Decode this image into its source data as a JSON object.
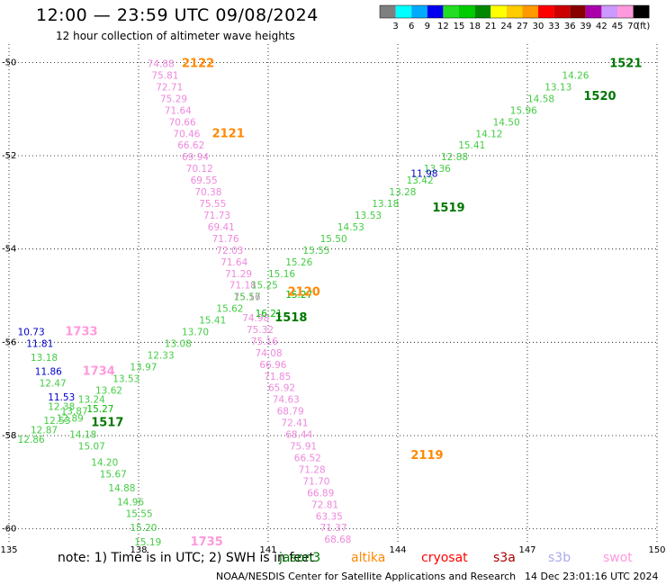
{
  "header": {
    "title": "12:00 — 23:59 UTC 09/08/2024",
    "subtitle": "12 hour collection of altimeter wave heights"
  },
  "colorbar": {
    "labels": [
      "3",
      "6",
      "9",
      "12",
      "15",
      "18",
      "21",
      "24",
      "27",
      "30",
      "33",
      "36",
      "39",
      "42",
      "45",
      "70"
    ],
    "unit": "(ft)",
    "colors": [
      "#7f7f7f",
      "#00ffff",
      "#00aaff",
      "#0000ee",
      "#22dd22",
      "#00cc00",
      "#008800",
      "#ffff00",
      "#ffcc00",
      "#ff9900",
      "#ff0000",
      "#cc0000",
      "#880000",
      "#aa00aa",
      "#cc99ff",
      "#ff99dd",
      "#000000"
    ]
  },
  "footer": {
    "note": "note:  1) Time is in UTC;  2) SWH is in feet",
    "credit": "NOAA/NESDIS Center for Satellite Applications and Research",
    "date": "14 Dec 23:01:16 UTC 2024",
    "satellites": [
      {
        "name": "jason3",
        "color": "#007700"
      },
      {
        "name": "altika",
        "color": "#ff8800"
      },
      {
        "name": "cryosat",
        "color": "#ff0000"
      },
      {
        "name": "s3a",
        "color": "#aa0000"
      },
      {
        "name": "s3b",
        "color": "#aaaaee"
      },
      {
        "name": "swot",
        "color": "#ff99dd"
      }
    ]
  },
  "chart_data": {
    "type": "scatter",
    "x_ticks": [
      "135",
      "138",
      "141",
      "144",
      "147",
      "150"
    ],
    "y_ticks": [
      "-50",
      "-52",
      "-54",
      "-56",
      "-58",
      "-60"
    ],
    "xlim": [
      135,
      150
    ],
    "ylim": [
      -60.2,
      -49.8
    ],
    "grid": true,
    "tracks": [
      {
        "satellite": "swot",
        "color": "#ee88dd",
        "points": [
          {
            "lon": 138.2,
            "lat": -50.1,
            "v": "74.88"
          },
          {
            "lon": 138.3,
            "lat": -50.35,
            "v": "75.81"
          },
          {
            "lon": 138.4,
            "lat": -50.6,
            "v": "72.71"
          },
          {
            "lon": 138.5,
            "lat": -50.85,
            "v": "75.29"
          },
          {
            "lon": 138.6,
            "lat": -51.1,
            "v": "71.64"
          },
          {
            "lon": 138.7,
            "lat": -51.35,
            "v": "70.66"
          },
          {
            "lon": 138.8,
            "lat": -51.6,
            "v": "70.46"
          },
          {
            "lon": 138.9,
            "lat": -51.85,
            "v": "66.62"
          },
          {
            "lon": 139.0,
            "lat": -52.1,
            "v": "69.94"
          },
          {
            "lon": 139.1,
            "lat": -52.35,
            "v": "70.12"
          },
          {
            "lon": 139.2,
            "lat": -52.6,
            "v": "69.55"
          },
          {
            "lon": 139.3,
            "lat": -52.85,
            "v": "70.38"
          },
          {
            "lon": 139.4,
            "lat": -53.1,
            "v": "75.55"
          },
          {
            "lon": 139.5,
            "lat": -53.35,
            "v": "71.73"
          },
          {
            "lon": 139.6,
            "lat": -53.6,
            "v": "69.41"
          },
          {
            "lon": 139.7,
            "lat": -53.85,
            "v": "71.76"
          },
          {
            "lon": 139.8,
            "lat": -54.1,
            "v": "72.03"
          },
          {
            "lon": 139.9,
            "lat": -54.35,
            "v": "71.64"
          },
          {
            "lon": 140.0,
            "lat": -54.6,
            "v": "71.29"
          },
          {
            "lon": 140.1,
            "lat": -54.85,
            "v": "71.18"
          },
          {
            "lon": 140.2,
            "lat": -55.1,
            "v": "75.16"
          },
          {
            "lon": 140.4,
            "lat": -55.55,
            "v": "74.98"
          },
          {
            "lon": 140.5,
            "lat": -55.8,
            "v": "75.32"
          },
          {
            "lon": 140.6,
            "lat": -56.05,
            "v": "75.16"
          },
          {
            "lon": 140.7,
            "lat": -56.3,
            "v": "74.08"
          },
          {
            "lon": 140.8,
            "lat": -56.55,
            "v": "66.96"
          },
          {
            "lon": 140.9,
            "lat": -56.8,
            "v": "71.85"
          },
          {
            "lon": 141.0,
            "lat": -57.05,
            "v": "65.92"
          },
          {
            "lon": 141.1,
            "lat": -57.3,
            "v": "74.63"
          },
          {
            "lon": 141.2,
            "lat": -57.55,
            "v": "68.79"
          },
          {
            "lon": 141.3,
            "lat": -57.8,
            "v": "72.41"
          },
          {
            "lon": 141.4,
            "lat": -58.05,
            "v": "68.44"
          },
          {
            "lon": 141.5,
            "lat": -58.3,
            "v": "75.91"
          },
          {
            "lon": 141.6,
            "lat": -58.55,
            "v": "66.52"
          },
          {
            "lon": 141.7,
            "lat": -58.8,
            "v": "71.28"
          },
          {
            "lon": 141.8,
            "lat": -59.05,
            "v": "71.70"
          },
          {
            "lon": 141.9,
            "lat": -59.3,
            "v": "66.89"
          },
          {
            "lon": 142.0,
            "lat": -59.55,
            "v": "72.81"
          },
          {
            "lon": 142.1,
            "lat": -59.8,
            "v": "63.35"
          },
          {
            "lon": 142.2,
            "lat": -60.05,
            "v": "71.37"
          },
          {
            "lon": 142.3,
            "lat": -60.3,
            "v": "68.68"
          }
        ]
      },
      {
        "satellite": "jason3",
        "color": "#44cc44",
        "points": [
          {
            "lon": 135.2,
            "lat": -58.15,
            "v": "12.86"
          },
          {
            "lon": 135.5,
            "lat": -57.95,
            "v": "12.87"
          },
          {
            "lon": 135.8,
            "lat": -57.75,
            "v": "12.53"
          },
          {
            "lon": 136.2,
            "lat": -57.55,
            "v": "13.87"
          },
          {
            "lon": 136.6,
            "lat": -57.3,
            "v": "13.24"
          },
          {
            "lon": 137.0,
            "lat": -57.1,
            "v": "13.62"
          },
          {
            "lon": 137.4,
            "lat": -56.85,
            "v": "13.53"
          },
          {
            "lon": 137.8,
            "lat": -56.6,
            "v": "13.97"
          },
          {
            "lon": 138.2,
            "lat": -56.35,
            "v": "12.33"
          },
          {
            "lon": 138.6,
            "lat": -56.1,
            "v": "13.08"
          },
          {
            "lon": 139.0,
            "lat": -55.85,
            "v": "13.70"
          },
          {
            "lon": 139.4,
            "lat": -55.6,
            "v": "15.41"
          },
          {
            "lon": 139.8,
            "lat": -55.35,
            "v": "15.62"
          },
          {
            "lon": 140.2,
            "lat": -55.1,
            "v": "15.57"
          },
          {
            "lon": 140.6,
            "lat": -54.85,
            "v": "15.25"
          },
          {
            "lon": 141.0,
            "lat": -54.6,
            "v": "15.16"
          },
          {
            "lon": 141.4,
            "lat": -54.35,
            "v": "15.26"
          },
          {
            "lon": 141.8,
            "lat": -54.1,
            "v": "15.55"
          },
          {
            "lon": 142.2,
            "lat": -53.85,
            "v": "15.50"
          },
          {
            "lon": 142.6,
            "lat": -53.6,
            "v": "14.53"
          },
          {
            "lon": 143.0,
            "lat": -53.35,
            "v": "13.53"
          },
          {
            "lon": 143.4,
            "lat": -53.1,
            "v": "13.18"
          },
          {
            "lon": 143.8,
            "lat": -52.85,
            "v": "13.28"
          },
          {
            "lon": 144.2,
            "lat": -52.6,
            "v": "13.42"
          },
          {
            "lon": 144.6,
            "lat": -52.35,
            "v": "13.36"
          },
          {
            "lon": 145.0,
            "lat": -52.1,
            "v": "12.88"
          },
          {
            "lon": 145.4,
            "lat": -51.85,
            "v": "15.41"
          },
          {
            "lon": 145.8,
            "lat": -51.6,
            "v": "14.12"
          },
          {
            "lon": 146.2,
            "lat": -51.35,
            "v": "14.50"
          },
          {
            "lon": 146.6,
            "lat": -51.1,
            "v": "15.96"
          },
          {
            "lon": 147.0,
            "lat": -50.85,
            "v": "14.58"
          },
          {
            "lon": 147.4,
            "lat": -50.6,
            "v": "13.13"
          },
          {
            "lon": 147.8,
            "lat": -50.35,
            "v": "14.26"
          }
        ]
      },
      {
        "satellite": "jason3",
        "color": "#44cc44",
        "points": [
          {
            "lon": 135.5,
            "lat": -56.4,
            "v": "13.18"
          },
          {
            "lon": 135.7,
            "lat": -56.95,
            "v": "12.47"
          },
          {
            "lon": 135.9,
            "lat": -57.45,
            "v": "12.38"
          },
          {
            "lon": 136.1,
            "lat": -57.7,
            "v": "12.89"
          },
          {
            "lon": 136.4,
            "lat": -58.05,
            "v": "14.18"
          },
          {
            "lon": 136.6,
            "lat": -58.3,
            "v": "15.07"
          },
          {
            "lon": 136.9,
            "lat": -58.65,
            "v": "14.20"
          },
          {
            "lon": 137.1,
            "lat": -58.9,
            "v": "15.67"
          },
          {
            "lon": 137.3,
            "lat": -59.2,
            "v": "14.88"
          },
          {
            "lon": 137.5,
            "lat": -59.5,
            "v": "14.96"
          },
          {
            "lon": 137.7,
            "lat": -59.75,
            "v": "15.55"
          },
          {
            "lon": 137.8,
            "lat": -60.05,
            "v": "15.20"
          },
          {
            "lon": 137.9,
            "lat": -60.35,
            "v": "15.19"
          }
        ]
      },
      {
        "satellite": "jason3",
        "color": "#0000cc",
        "points": [
          {
            "lon": 135.2,
            "lat": -55.85,
            "v": "10.73"
          },
          {
            "lon": 135.4,
            "lat": -56.1,
            "v": "11.81"
          },
          {
            "lon": 135.6,
            "lat": -56.7,
            "v": "11.86"
          },
          {
            "lon": 135.9,
            "lat": -57.25,
            "v": "11.53"
          },
          {
            "lon": 144.3,
            "lat": -52.45,
            "v": "11.98"
          }
        ]
      },
      {
        "satellite": "jason3",
        "color": "#00bb00",
        "points": [
          {
            "lon": 136.8,
            "lat": -57.5,
            "v": "15.27"
          },
          {
            "lon": 140.7,
            "lat": -55.45,
            "v": "16.21"
          },
          {
            "lon": 141.4,
            "lat": -55.05,
            "v": "15.27"
          }
        ]
      }
    ],
    "pass_labels": [
      {
        "text": "2122",
        "lon": 139.0,
        "lat": -50.1,
        "color": "#ff8800"
      },
      {
        "text": "2121",
        "lon": 139.7,
        "lat": -51.6,
        "color": "#ff8800"
      },
      {
        "text": "2120",
        "lon": 141.45,
        "lat": -55.0,
        "color": "#ff8800"
      },
      {
        "text": "2119",
        "lon": 144.3,
        "lat": -58.5,
        "color": "#ff8800"
      },
      {
        "text": "1521",
        "lon": 148.9,
        "lat": -50.1,
        "color": "#007700"
      },
      {
        "text": "1520",
        "lon": 148.3,
        "lat": -50.8,
        "color": "#007700"
      },
      {
        "text": "1519",
        "lon": 144.8,
        "lat": -53.2,
        "color": "#007700"
      },
      {
        "text": "1518",
        "lon": 141.15,
        "lat": -55.55,
        "color": "#007700"
      },
      {
        "text": "1517",
        "lon": 136.9,
        "lat": -57.8,
        "color": "#007700"
      },
      {
        "text": "1733",
        "lon": 136.3,
        "lat": -55.85,
        "color": "#ff99dd"
      },
      {
        "text": "1734",
        "lon": 136.7,
        "lat": -56.7,
        "color": "#ff99dd"
      },
      {
        "text": "1735",
        "lon": 139.2,
        "lat": -60.35,
        "color": "#ff99dd"
      }
    ]
  }
}
